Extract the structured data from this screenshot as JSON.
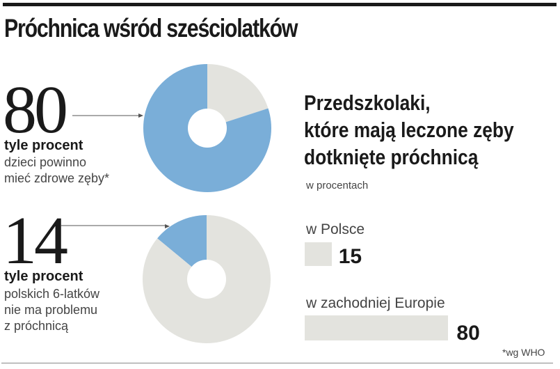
{
  "title": "Próchnica wśród sześciolatków",
  "colors": {
    "blue": "#7aaed8",
    "gray": "#e3e3de"
  },
  "chart_data": [
    {
      "type": "pie",
      "title": "80",
      "label_bold": "tyle procent",
      "label_lines": [
        "dzieci powinno",
        "mieć zdrowe zęby*"
      ],
      "highlight_value": 80,
      "values": [
        80,
        20
      ],
      "donut": true
    },
    {
      "type": "pie",
      "title": "14",
      "label_bold": "tyle procent",
      "label_lines": [
        "polskich 6-latków",
        "nie ma problemu",
        "z próchnicą"
      ],
      "highlight_value": 14,
      "values": [
        14,
        86
      ],
      "donut": true
    },
    {
      "type": "bar",
      "title_lines": [
        "Przedszkolaki,",
        "które mają leczone zęby",
        "dotknięte próchnicą"
      ],
      "unit": "w procentach",
      "categories": [
        "w Polsce",
        "w zachodniej Europie"
      ],
      "values": [
        15,
        80
      ],
      "labels": [
        "15",
        "80"
      ]
    }
  ],
  "footnote": "*wg WHO"
}
